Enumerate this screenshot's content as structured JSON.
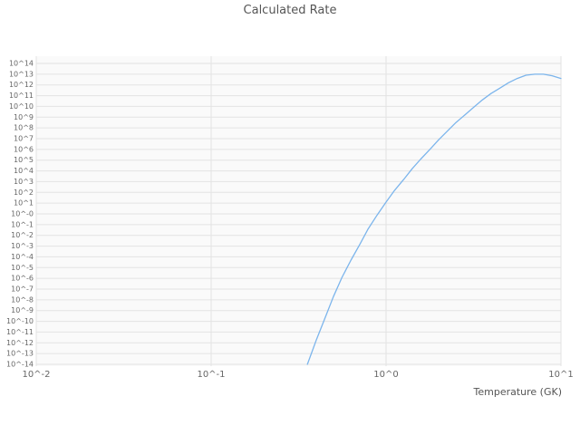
{
  "chart_data": {
    "type": "line",
    "title": "Calculated Rate",
    "xlabel": "Temperature (GK)",
    "ylabel": "",
    "x_scale": "log10",
    "y_scale": "log10",
    "xlim_log10": [
      -2,
      1
    ],
    "ylim_log10": [
      -14,
      14
    ],
    "grid": true,
    "legend": "none",
    "x_ticks": [
      {
        "log10": -2,
        "label": "10^-2"
      },
      {
        "log10": -1,
        "label": "10^-1"
      },
      {
        "log10": 0,
        "label": "10^0"
      },
      {
        "log10": 1,
        "label": "10^1"
      }
    ],
    "y_ticks": [
      {
        "log10": 14,
        "label": "10^14"
      },
      {
        "log10": 13,
        "label": "10^13"
      },
      {
        "log10": 12,
        "label": "10^12"
      },
      {
        "log10": 11,
        "label": "10^11"
      },
      {
        "log10": 10,
        "label": "10^10"
      },
      {
        "log10": 9,
        "label": "10^9"
      },
      {
        "log10": 8,
        "label": "10^8"
      },
      {
        "log10": 7,
        "label": "10^7"
      },
      {
        "log10": 6,
        "label": "10^6"
      },
      {
        "log10": 5,
        "label": "10^5"
      },
      {
        "log10": 4,
        "label": "10^4"
      },
      {
        "log10": 3,
        "label": "10^3"
      },
      {
        "log10": 2,
        "label": "10^2"
      },
      {
        "log10": 1,
        "label": "10^1"
      },
      {
        "log10": 0,
        "label": "10^-0"
      },
      {
        "log10": -1,
        "label": "10^-1"
      },
      {
        "log10": -2,
        "label": "10^-2"
      },
      {
        "log10": -3,
        "label": "10^-3"
      },
      {
        "log10": -4,
        "label": "10^-4"
      },
      {
        "log10": -5,
        "label": "10^-5"
      },
      {
        "log10": -6,
        "label": "10^-6"
      },
      {
        "log10": -7,
        "label": "10^-7"
      },
      {
        "log10": -8,
        "label": "10^-8"
      },
      {
        "log10": -9,
        "label": "10^-9"
      },
      {
        "log10": -10,
        "label": "10^-10"
      },
      {
        "log10": -11,
        "label": "10^-11"
      },
      {
        "log10": -12,
        "label": "10^-12"
      },
      {
        "log10": -13,
        "label": "10^-13"
      },
      {
        "log10": -14,
        "label": "10^-14"
      }
    ],
    "series": [
      {
        "name": "calculated-rate",
        "color": "#7cb5ec",
        "points_format": "[temperature_GK, log10_rate]",
        "points": [
          [
            0.355,
            -14.0
          ],
          [
            0.4,
            -11.7
          ],
          [
            0.45,
            -9.6
          ],
          [
            0.5,
            -7.7
          ],
          [
            0.56,
            -5.9
          ],
          [
            0.63,
            -4.3
          ],
          [
            0.71,
            -2.8
          ],
          [
            0.79,
            -1.4
          ],
          [
            0.89,
            -0.1
          ],
          [
            1.0,
            1.1
          ],
          [
            1.12,
            2.2
          ],
          [
            1.26,
            3.2
          ],
          [
            1.41,
            4.2
          ],
          [
            1.58,
            5.1
          ],
          [
            1.78,
            6.0
          ],
          [
            2.0,
            6.9
          ],
          [
            2.24,
            7.7
          ],
          [
            2.51,
            8.5
          ],
          [
            2.82,
            9.2
          ],
          [
            3.16,
            9.9
          ],
          [
            3.55,
            10.6
          ],
          [
            3.98,
            11.2
          ],
          [
            4.47,
            11.7
          ],
          [
            5.01,
            12.2
          ],
          [
            5.62,
            12.6
          ],
          [
            6.31,
            12.9
          ],
          [
            7.08,
            13.0
          ],
          [
            7.94,
            13.0
          ],
          [
            8.91,
            12.85
          ],
          [
            10.0,
            12.6
          ]
        ]
      }
    ]
  },
  "colors": {
    "line": "#7cb5ec",
    "grid": "#e3e3e3",
    "plot_bg": "#fafafa",
    "tick_text": "#666666",
    "title_text": "#555555"
  }
}
